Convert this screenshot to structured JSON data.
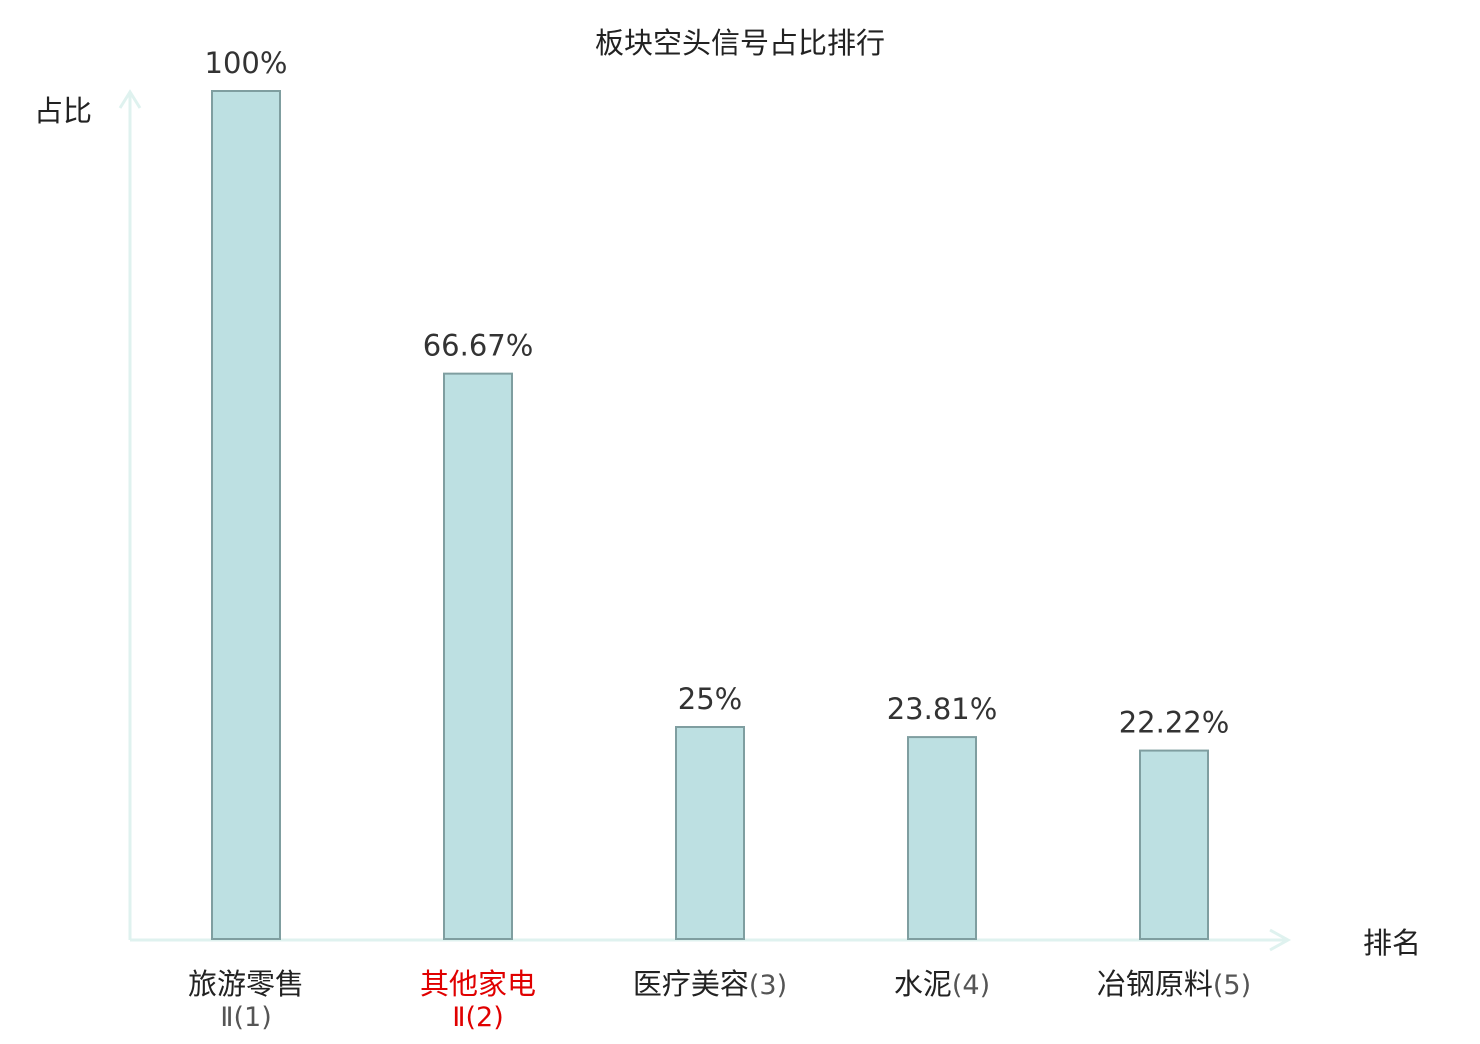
{
  "chart_data": {
    "type": "bar",
    "title": "板块空头信号占比排行",
    "xlabel": "排名",
    "ylabel": "占比",
    "categories": [
      {
        "name": "旅游零售",
        "rank": "Ⅱ(1)",
        "highlight": false
      },
      {
        "name": "其他家电",
        "rank": "Ⅱ(2)",
        "highlight": true
      },
      {
        "name": "医疗美容",
        "rank": "(3)",
        "highlight": false
      },
      {
        "name": "水泥",
        "rank": "(4)",
        "highlight": false
      },
      {
        "name": "冶钢原料",
        "rank": "(5)",
        "highlight": false
      }
    ],
    "values": [
      100,
      66.67,
      25,
      23.81,
      22.22
    ],
    "value_labels": [
      "100%",
      "66.67%",
      "25%",
      "23.81%",
      "22.22%"
    ],
    "ylim": [
      0,
      100
    ],
    "grid": false,
    "colors": {
      "bar_fill": "#bde0e2",
      "bar_stroke": "#7f9ea0",
      "axis": "#dff2ef",
      "text": "#333333",
      "label": "#222222",
      "highlight": "#e00000",
      "rank": "#555555"
    }
  }
}
